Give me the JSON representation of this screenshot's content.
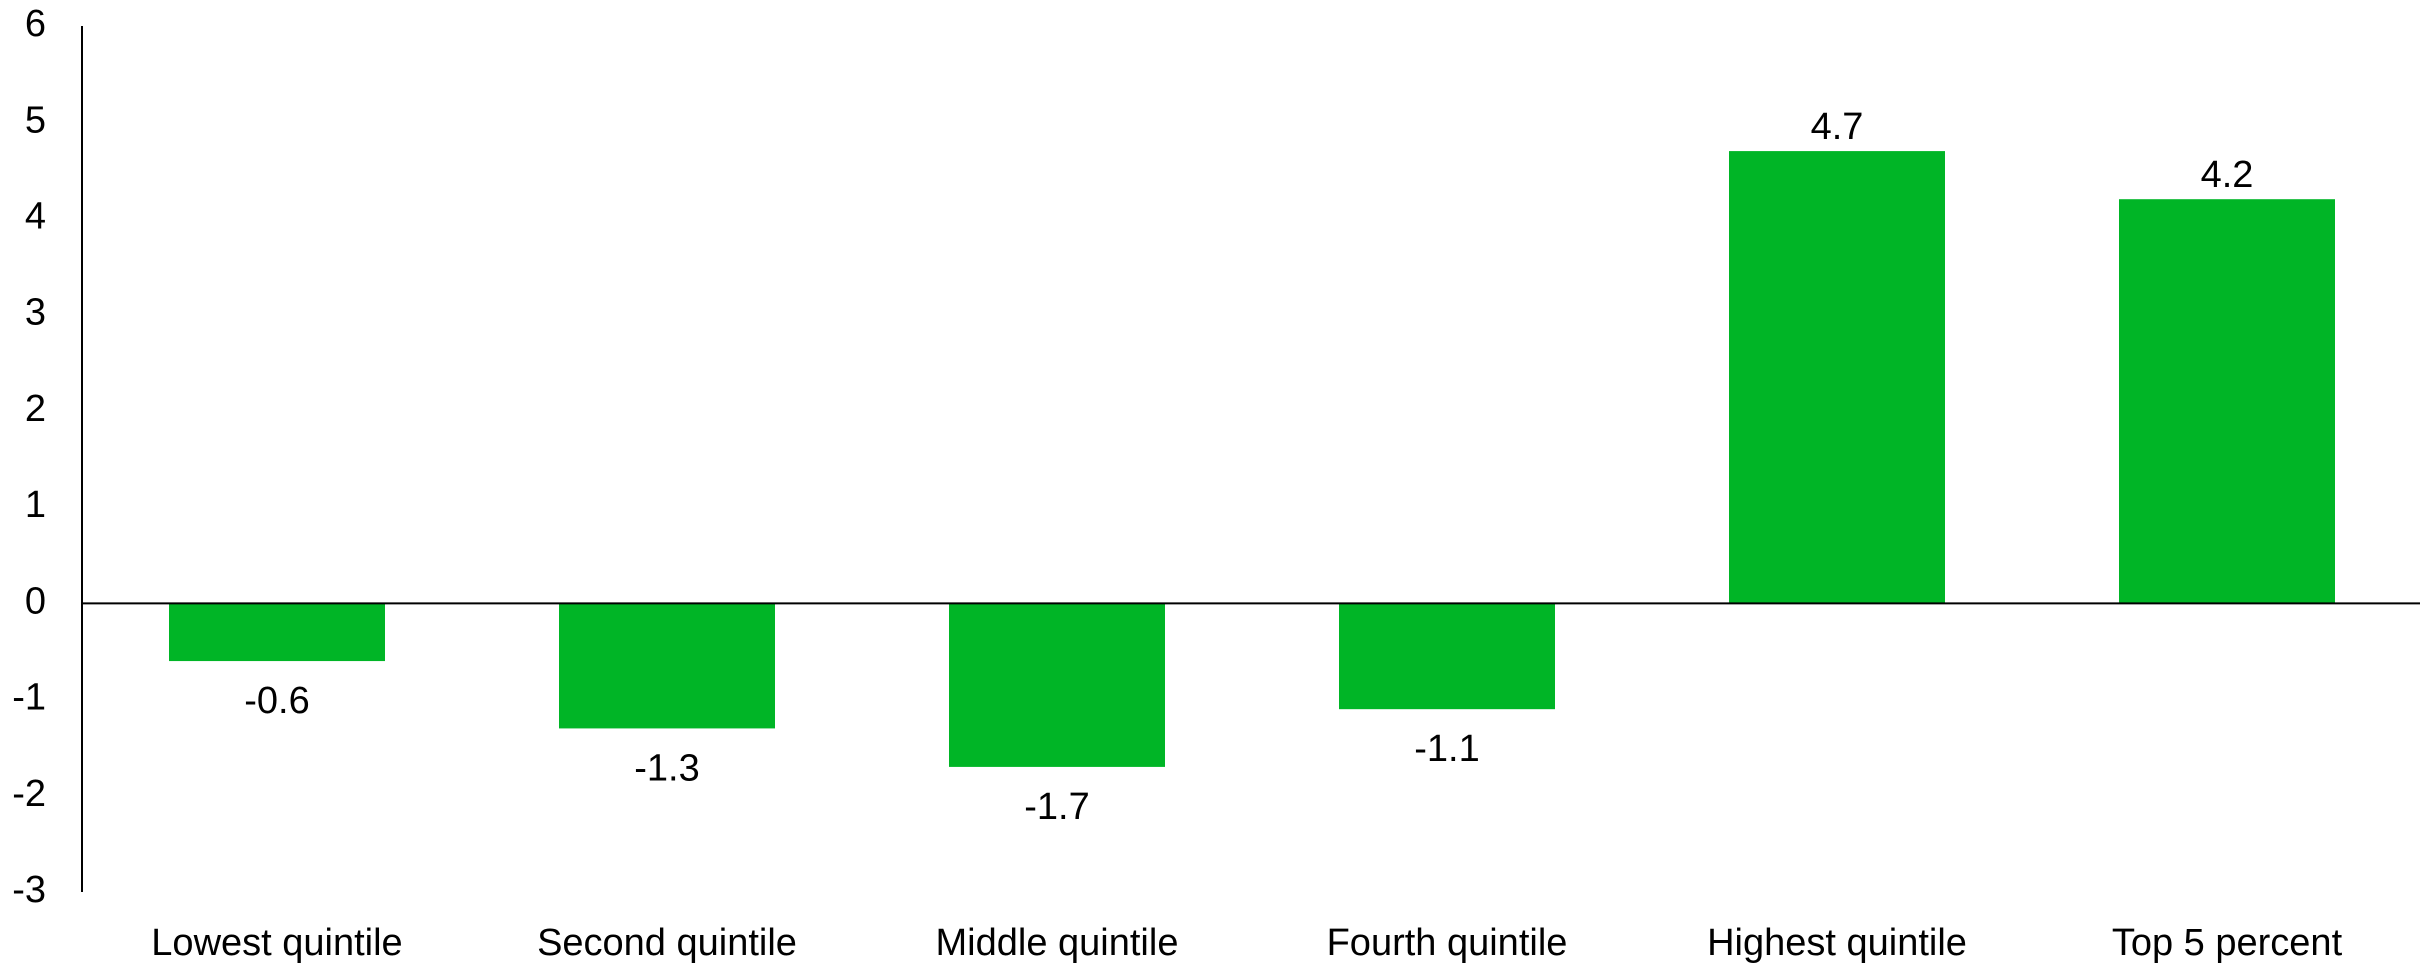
{
  "chart_data": {
    "type": "bar",
    "title": "",
    "xlabel": "",
    "ylabel": "",
    "categories": [
      "Lowest quintile",
      "Second quintile",
      "Middle quintile",
      "Fourth quintile",
      "Highest quintile",
      "Top 5 percent"
    ],
    "values": [
      -0.6,
      -1.3,
      -1.7,
      -1.1,
      4.7,
      4.2
    ],
    "data_labels": [
      "-0.6",
      "-1.3",
      "-1.7",
      "-1.1",
      "4.7",
      "4.2"
    ],
    "ylim": [
      -3,
      6
    ],
    "yticks": [
      6,
      5,
      4,
      3,
      2,
      1,
      0,
      -1,
      -2,
      -3
    ],
    "ytick_labels": [
      "6",
      "5",
      "4",
      "3",
      "2",
      "1",
      "0",
      "-1",
      "-2",
      "-3"
    ],
    "grid": false,
    "legend": "none",
    "bar_color": "#00b526",
    "axis_color": "#000000"
  }
}
